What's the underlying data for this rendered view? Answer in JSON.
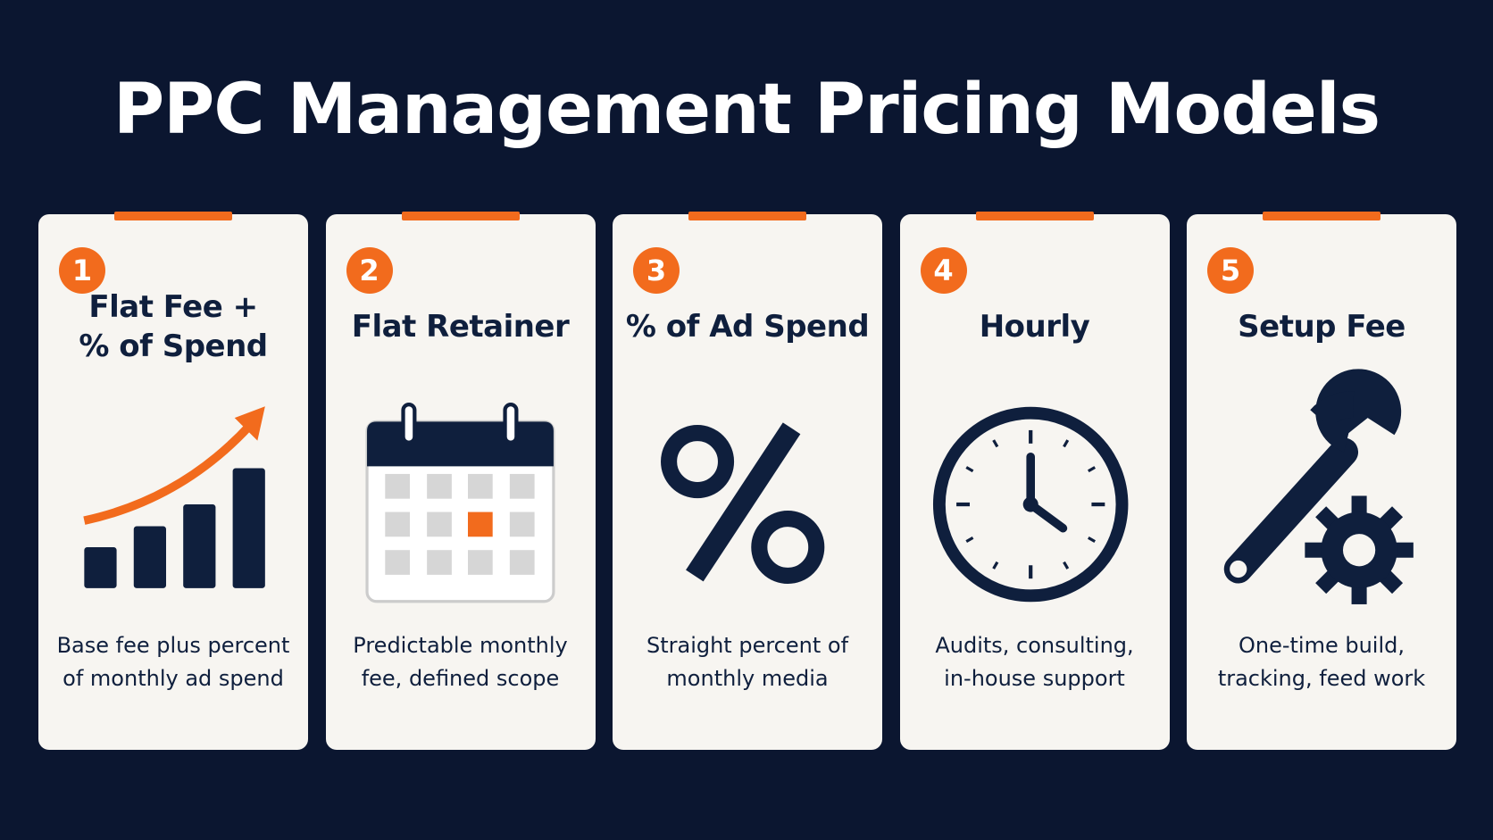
{
  "header": {
    "title": "PPC Management Pricing Models"
  },
  "cards": [
    {
      "number": 1,
      "title_lines": [
        "Flat Fee +",
        "% of Spend"
      ],
      "description_lines": [
        "Base fee plus percent",
        "of monthly ad spend"
      ]
    },
    {
      "number": 2,
      "title_lines": [
        "Flat Retainer"
      ],
      "description_lines": [
        "Predictable monthly",
        "fee, defined scope"
      ]
    },
    {
      "number": 3,
      "title_lines": [
        "% of Ad Spend"
      ],
      "description_lines": [
        "Straight percent of",
        "monthly media"
      ]
    },
    {
      "number": 4,
      "title_lines": [
        "Hourly"
      ],
      "description_lines": [
        "Audits, consulting,",
        "in-house support"
      ]
    },
    {
      "number": 5,
      "title_lines": [
        "Setup Fee"
      ],
      "description_lines": [
        "One-time build,",
        "tracking, feed work"
      ]
    }
  ]
}
